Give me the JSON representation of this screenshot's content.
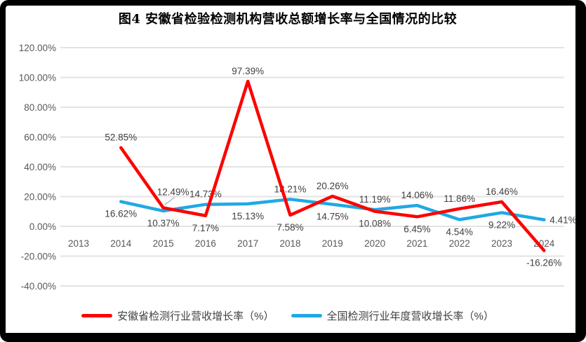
{
  "title": "图4 安徽省检验检测机构营收总额增长率与全国情况的比较",
  "colors": {
    "anhui_series": "#FE0000",
    "national_series": "#1FA9E4",
    "gridline": "#E3E3E3",
    "tick_text": "#595959",
    "data_label_text": "#404040",
    "leader_line": "#A6A6A6",
    "frame": "#000000"
  },
  "chart_data": {
    "type": "line",
    "categories": [
      "2013",
      "2014",
      "2015",
      "2016",
      "2017",
      "2018",
      "2019",
      "2020",
      "2021",
      "2022",
      "2023",
      "2024"
    ],
    "series": [
      {
        "name": "安徽省检测行业营收增长率（%）",
        "color": "#FE0000",
        "values": [
          null,
          52.85,
          12.49,
          7.17,
          97.39,
          7.58,
          20.26,
          10.08,
          6.45,
          11.86,
          16.46,
          -16.26
        ],
        "point_labels": [
          "",
          "52.85%",
          "12.49%",
          "7.17%",
          "97.39%",
          "7.58%",
          "20.26%",
          "10.08%",
          "6.45%",
          "11.86%",
          "16.46%",
          "-16.26%"
        ],
        "label_side": [
          "",
          "above",
          "above-leader",
          "below",
          "above",
          "below",
          "above",
          "below",
          "below",
          "above",
          "above",
          "below"
        ]
      },
      {
        "name": "全国检测行业年度营收增长率（%）",
        "color": "#1FA9E4",
        "values": [
          null,
          16.62,
          10.37,
          14.73,
          15.13,
          18.21,
          14.75,
          11.19,
          14.06,
          4.54,
          9.22,
          4.41
        ],
        "point_labels": [
          "",
          "16.62%",
          "10.37%",
          "14.73%",
          "15.13%",
          "18.21%",
          "14.75%",
          "11.19%",
          "14.06%",
          "4.54%",
          "9.22%",
          "4.41%"
        ],
        "label_side": [
          "",
          "below",
          "below",
          "above",
          "below",
          "above",
          "below",
          "above",
          "above",
          "below",
          "below",
          "right"
        ]
      }
    ],
    "ytick_values": [
      120,
      100,
      80,
      60,
      40,
      20,
      0,
      -20,
      -40
    ],
    "ytick_labels": [
      "120.00%",
      "100.00%",
      "80.00%",
      "60.00%",
      "40.00%",
      "20.00%",
      "0.00%",
      "-20.00%",
      "-40.00%"
    ],
    "ylim": [
      -40,
      120
    ],
    "xlabel": "",
    "ylabel": "",
    "grid": true,
    "legend_position": "bottom"
  }
}
